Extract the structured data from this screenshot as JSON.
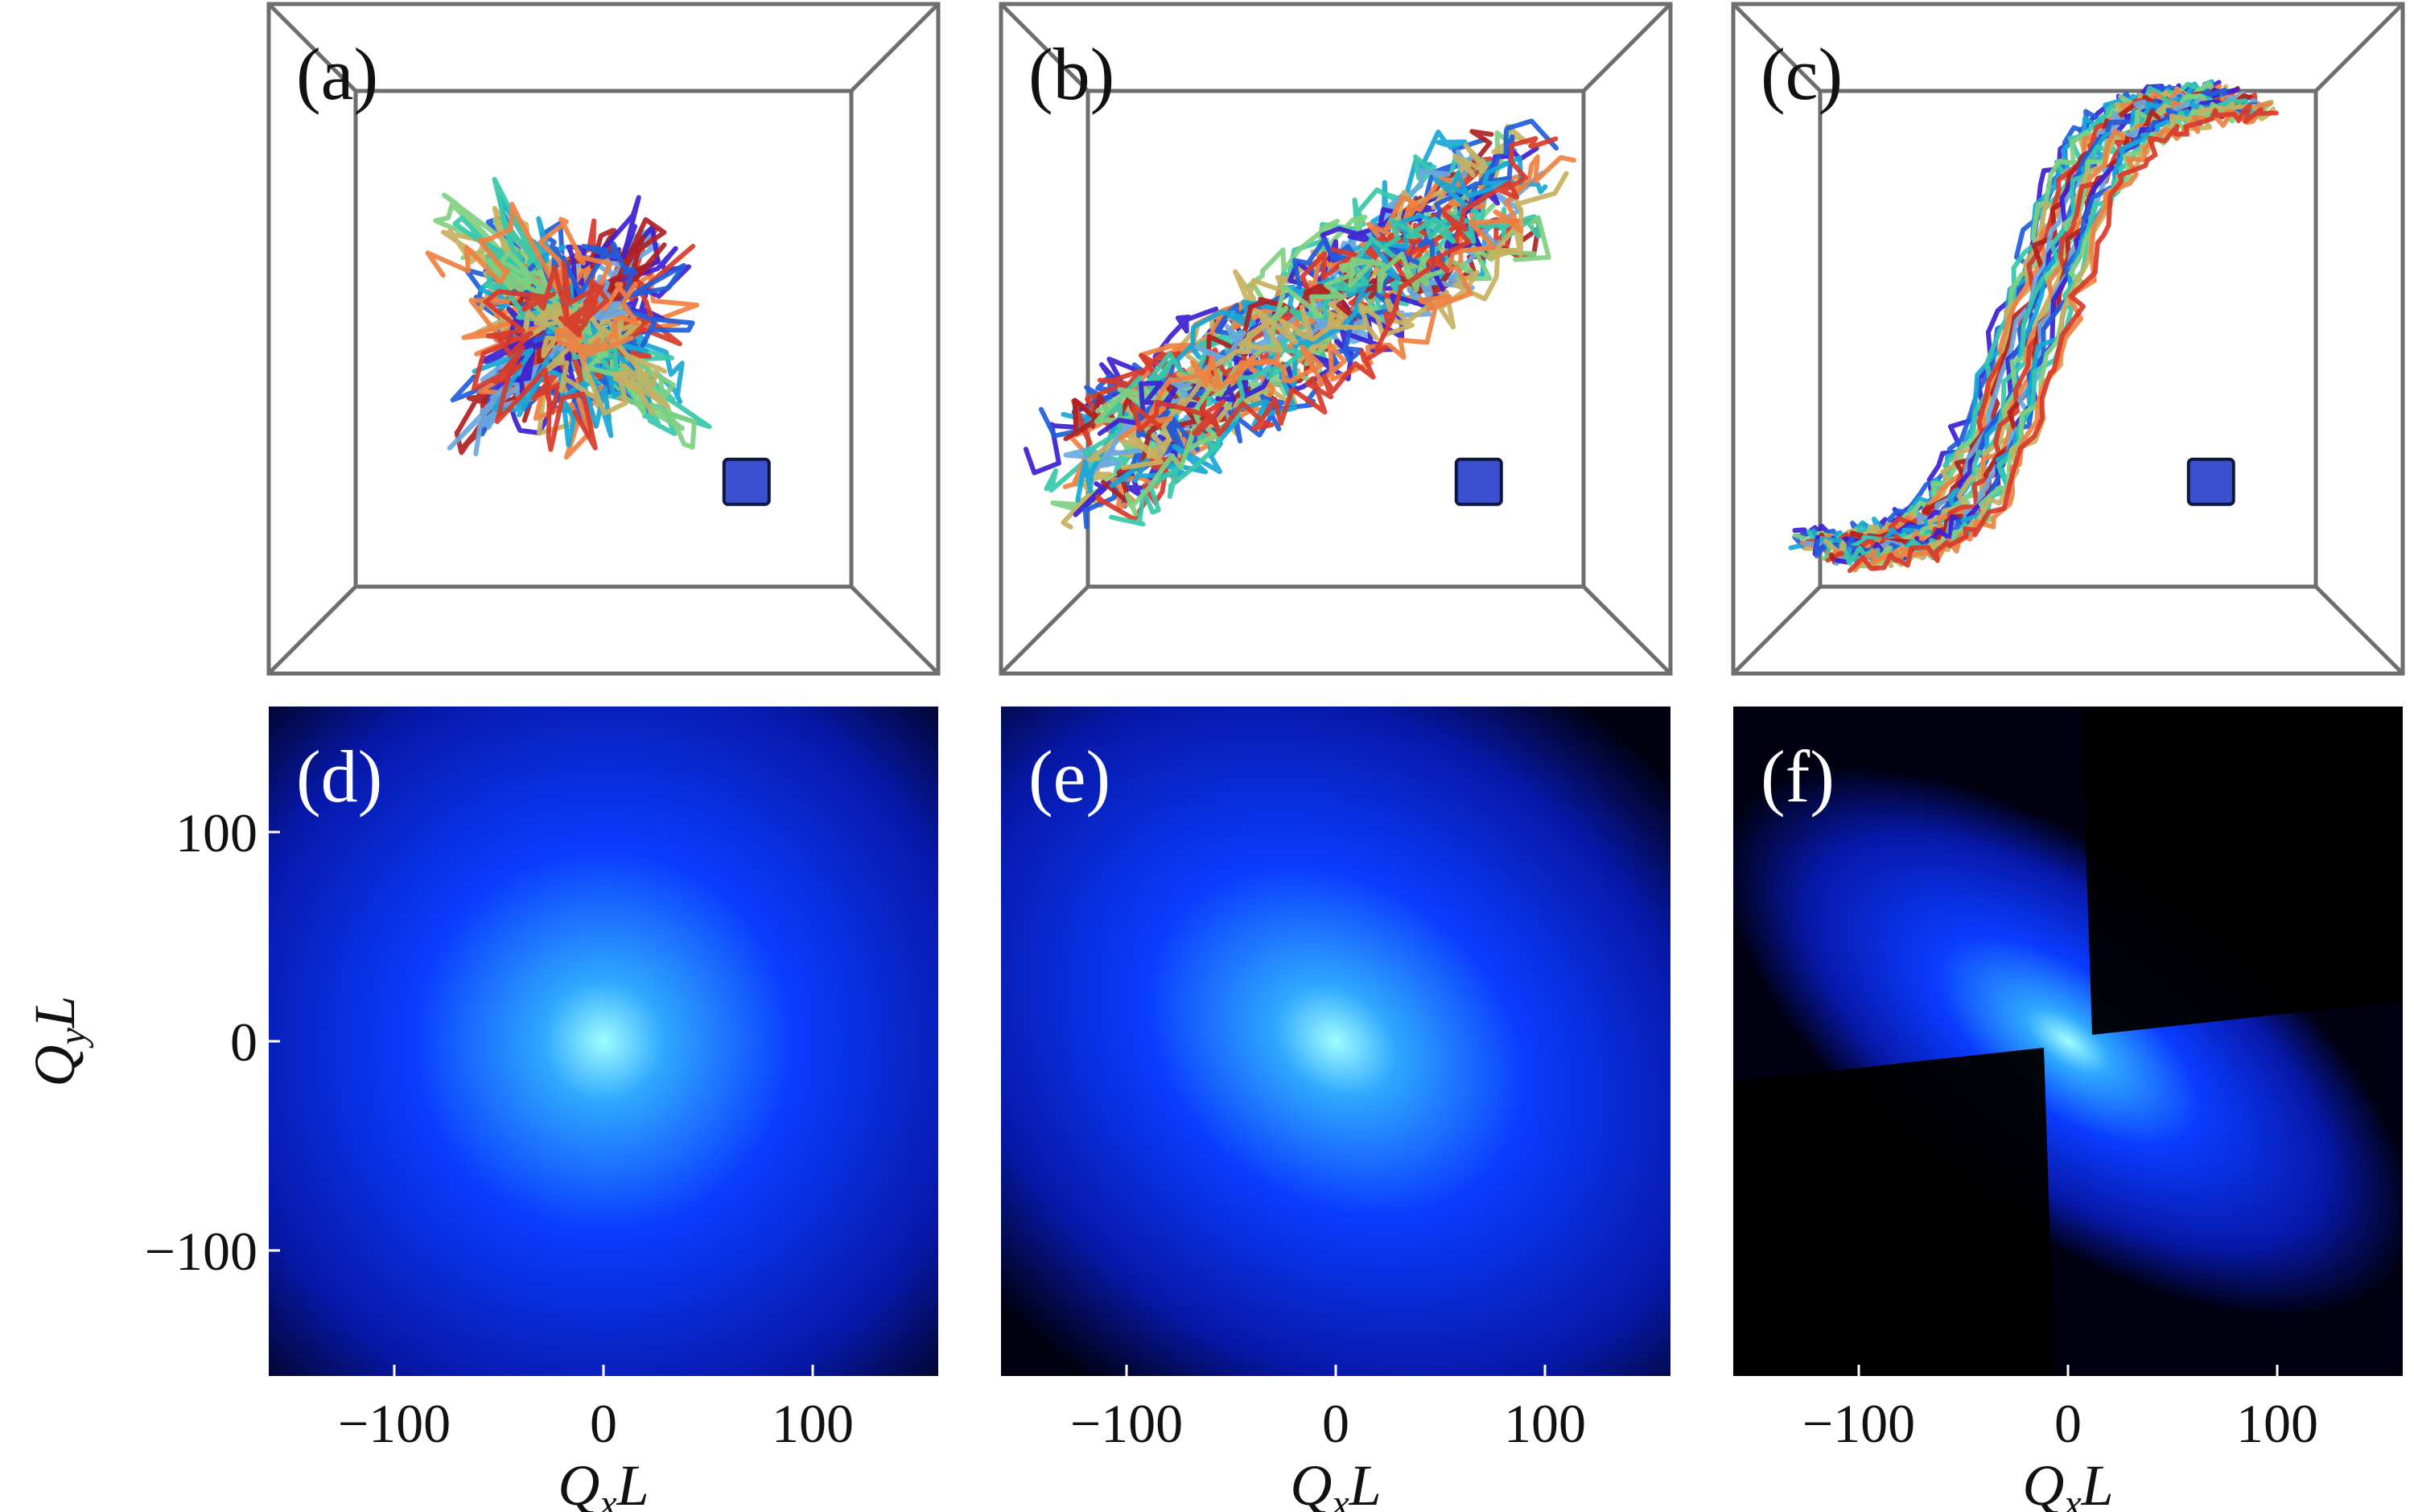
{
  "panels_top": [
    {
      "label": "(a)",
      "elongation": 0.0
    },
    {
      "label": "(b)",
      "elongation": 0.5
    },
    {
      "label": "(c)",
      "elongation": 1.0
    }
  ],
  "panels_bottom": [
    {
      "label": "(d)"
    },
    {
      "label": "(e)"
    },
    {
      "label": "(f)"
    }
  ],
  "colors": {
    "box_edge": "#6e6e6e",
    "inset_square": "#3c4fd0",
    "heat_low": "#000010",
    "heat_mid": "#0a3cff",
    "heat_high": "#9ffcff",
    "curve_palette": [
      "#3b1fd1",
      "#1f5ddc",
      "#17a7d6",
      "#37c8a8",
      "#7fd080",
      "#c8b060",
      "#f08040",
      "#d83a2a",
      "#b02020",
      "#6aa8e0"
    ]
  },
  "chart_data": [
    {
      "type": "heatmap",
      "panel": "(d)",
      "xlabel": "QxL",
      "ylabel": "QyL",
      "xlim": [
        -160,
        160
      ],
      "ylim": [
        -160,
        160
      ],
      "xticks": [
        -100,
        0,
        100
      ],
      "yticks": [
        100,
        0,
        -100
      ]
    },
    {
      "type": "heatmap",
      "panel": "(e)",
      "xlabel": "QxL",
      "xlim": [
        -160,
        160
      ],
      "ylim": [
        -160,
        160
      ],
      "xticks": [
        -100,
        0,
        100
      ]
    },
    {
      "type": "heatmap",
      "panel": "(f)",
      "xlabel": "QxL",
      "xlim": [
        -160,
        160
      ],
      "ylim": [
        -160,
        160
      ],
      "xticks": [
        -100,
        0,
        100
      ]
    }
  ],
  "tick_labels": {
    "x": [
      "−100",
      "0",
      "100"
    ],
    "y": [
      "100",
      "0",
      "−100"
    ]
  },
  "axis_titles": {
    "x_main": "Q",
    "x_sub": "x",
    "x_tail": "L",
    "y_main": "Q",
    "y_sub": "y",
    "y_tail": "L"
  }
}
